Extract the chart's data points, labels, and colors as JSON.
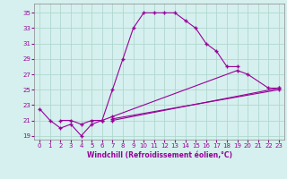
{
  "xlabel": "Windchill (Refroidissement éolien,°C)",
  "bg_color": "#d5f0ee",
  "line_color": "#990099",
  "grid_color": "#b0d8d0",
  "line1_x": [
    0,
    1,
    2,
    3,
    4,
    5,
    6,
    7,
    8,
    9,
    10,
    11,
    12,
    13,
    14,
    15,
    16,
    17,
    18,
    19
  ],
  "line1_y": [
    22.5,
    21.0,
    20.0,
    20.5,
    19.0,
    20.5,
    21.0,
    25.0,
    29.0,
    33.0,
    35.0,
    35.0,
    35.0,
    35.0,
    34.0,
    33.0,
    31.0,
    30.0,
    28.0,
    28.0
  ],
  "line2_x": [
    2,
    3,
    4,
    5,
    6,
    7,
    19,
    20,
    22,
    23
  ],
  "line2_y": [
    21.0,
    21.0,
    20.5,
    21.0,
    21.0,
    21.5,
    27.5,
    27.0,
    25.2,
    25.2
  ],
  "line3_x": [
    7,
    23
  ],
  "line3_y": [
    21.0,
    25.2
  ],
  "line4_x": [
    7,
    23
  ],
  "line4_y": [
    21.2,
    25.0
  ],
  "xlim": [
    -0.5,
    23.5
  ],
  "ylim": [
    18.5,
    36.2
  ],
  "yticks": [
    19,
    21,
    23,
    25,
    27,
    29,
    31,
    33,
    35
  ],
  "xticks": [
    0,
    1,
    2,
    3,
    4,
    5,
    6,
    7,
    8,
    9,
    10,
    11,
    12,
    13,
    14,
    15,
    16,
    17,
    18,
    19,
    20,
    21,
    22,
    23
  ]
}
